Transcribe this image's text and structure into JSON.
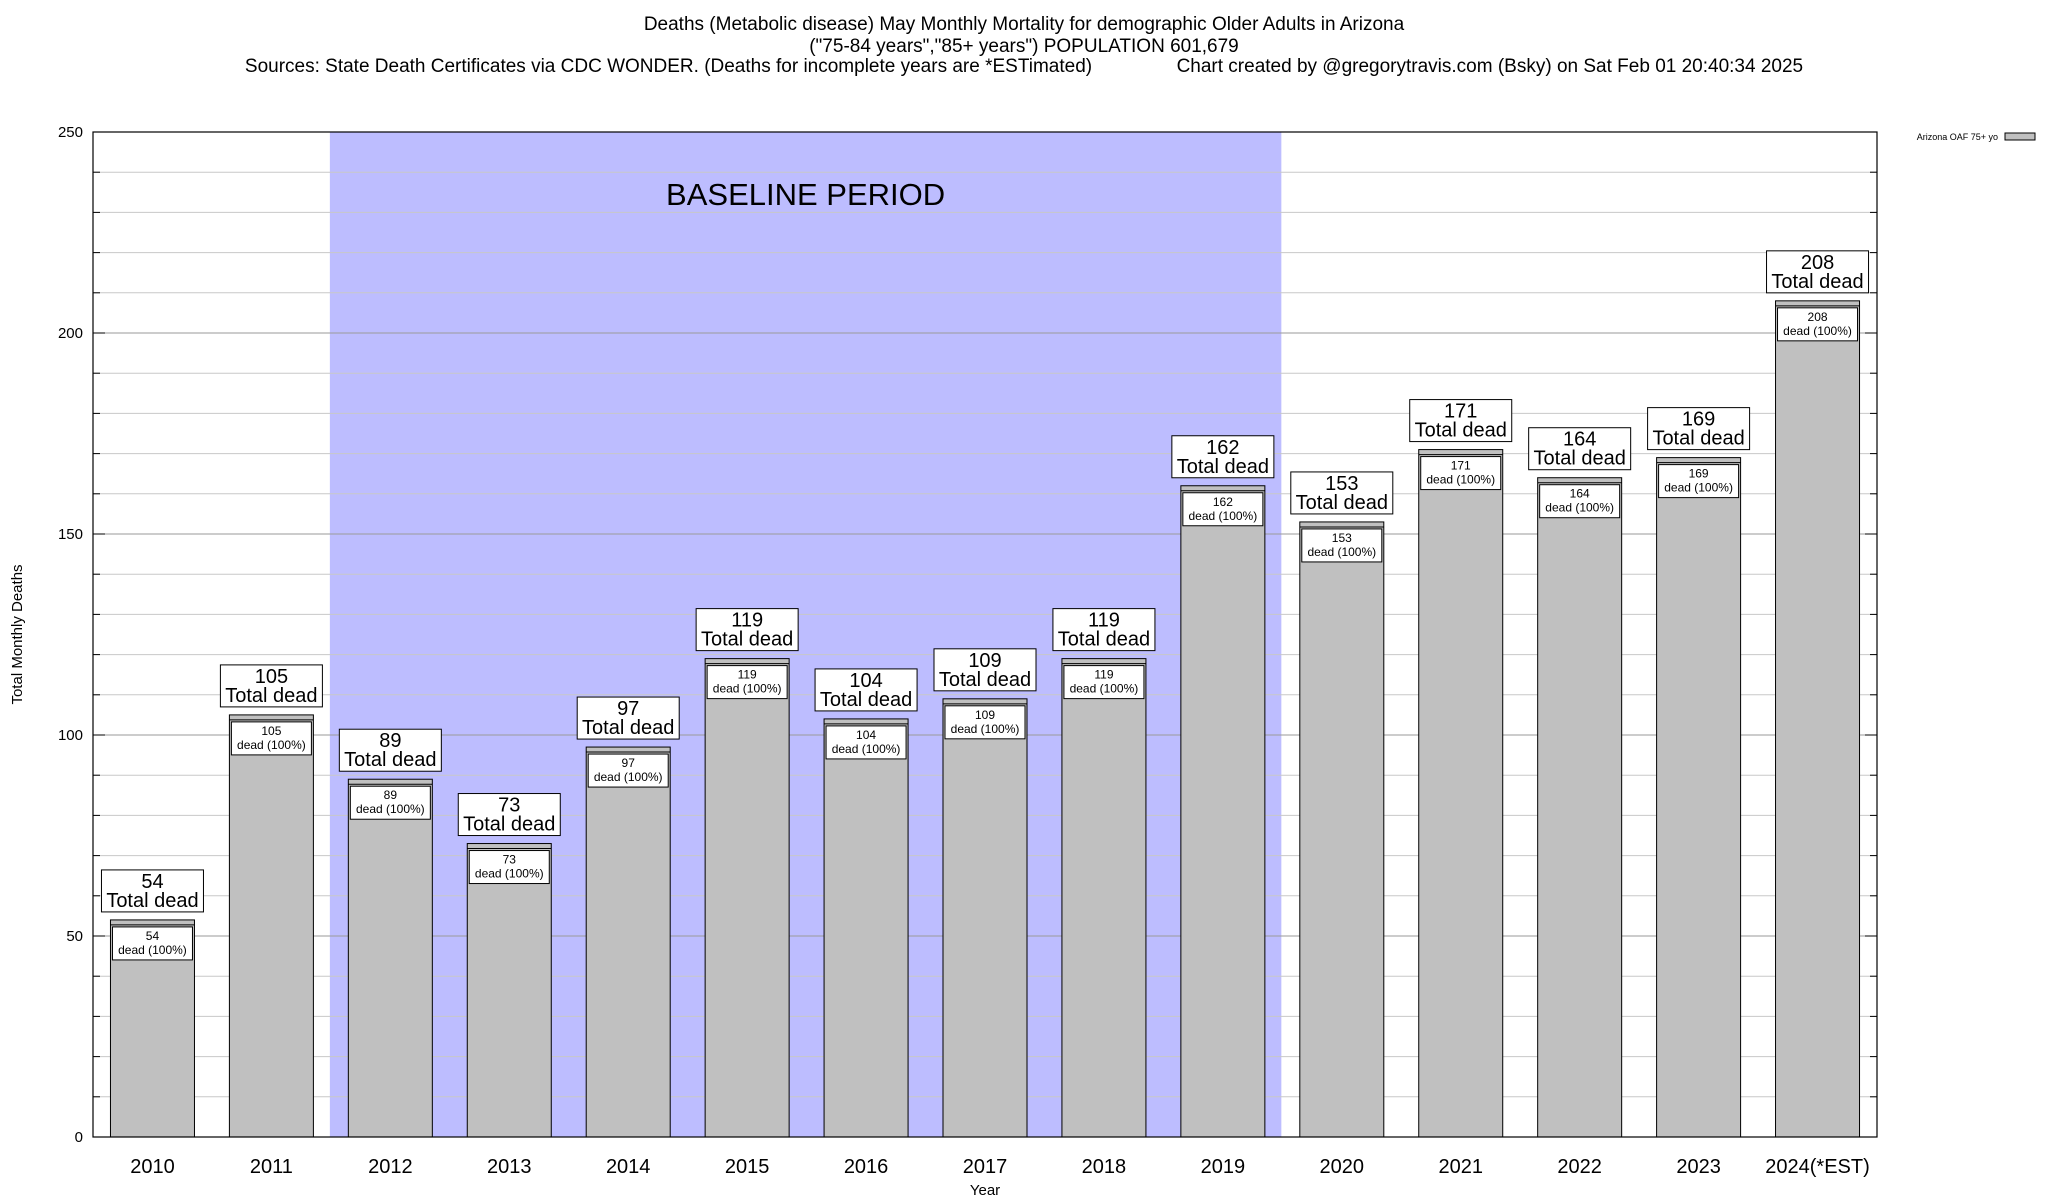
{
  "title": {
    "line1": "Deaths (Metabolic disease) May Monthly Mortality for demographic Older Adults in Arizona",
    "line2": "(\"75-84 years\",\"85+ years\") POPULATION 601,679",
    "sources": "Sources: State Death Certificates via CDC WONDER. (Deaths for incomplete years are *ESTimated)",
    "credit": "Chart created by @gregorytravis.com (Bsky) on Sat Feb 01 20:40:34 2025"
  },
  "chart_data": {
    "type": "bar",
    "xlabel": "Year",
    "ylabel": "Total Monthly Deaths",
    "ylim": [
      0,
      250
    ],
    "yticks": [
      0,
      50,
      100,
      150,
      200,
      250
    ],
    "grid": true,
    "legend": {
      "position": "top-right",
      "label": "Arizona OAF 75+ yo"
    },
    "categories": [
      "2010",
      "2011",
      "2012",
      "2013",
      "2014",
      "2015",
      "2016",
      "2017",
      "2018",
      "2019",
      "2020",
      "2021",
      "2022",
      "2023",
      "2024(*EST)"
    ],
    "series": [
      {
        "name": "Arizona OAF 75+ yo",
        "values": [
          54,
          105,
          89,
          73,
          97,
          119,
          104,
          109,
          119,
          162,
          153,
          171,
          164,
          169,
          208
        ]
      }
    ],
    "total_label": "Total dead",
    "inner_label": "dead (100%)",
    "baseline": {
      "label": "BASELINE PERIOD",
      "from": "2012",
      "to": "2019"
    },
    "colors": {
      "bar": "#c0c0c0",
      "baseline": "#bdbdff",
      "grid": "#c8c8c8"
    }
  }
}
